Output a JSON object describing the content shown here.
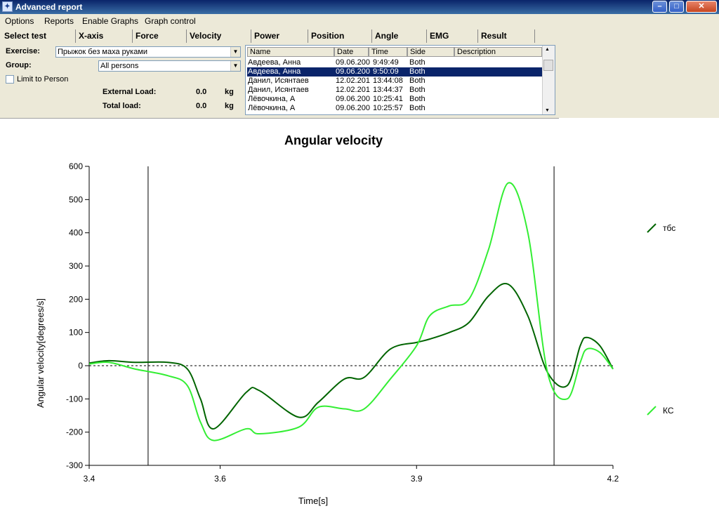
{
  "window": {
    "title": "Advanced report"
  },
  "menu": [
    "Options",
    "Reports",
    "Enable Graphs",
    "Graph control"
  ],
  "tabs": [
    "Select test",
    "X-axis",
    "Force",
    "Velocity",
    "Power",
    "Position",
    "Angle",
    "EMG",
    "Result"
  ],
  "form": {
    "exercise_label": "Exercise:",
    "exercise_value": "Прыжок без маха руками",
    "group_label": "Group:",
    "group_value": "All persons",
    "limit_label": "Limit to Person",
    "external_load_label": "External Load:",
    "external_load_value": "0.0",
    "external_load_unit": "kg",
    "total_load_label": "Total load:",
    "total_load_value": "0.0",
    "total_load_unit": "kg"
  },
  "list": {
    "columns": [
      "Name",
      "Date",
      "Time",
      "Side",
      "Description"
    ],
    "rows": [
      {
        "name": "Авдеева, Анна",
        "date": "09.06.200",
        "time": "9:49:49",
        "side": "Both",
        "selected": false
      },
      {
        "name": "Авдеева, Анна",
        "date": "09.06.200",
        "time": "9:50:09",
        "side": "Both",
        "selected": true
      },
      {
        "name": "Данил, Исянтаев",
        "date": "12.02.201",
        "time": "13:44:08",
        "side": "Both",
        "selected": false
      },
      {
        "name": "Данил, Исянтаев",
        "date": "12.02.201",
        "time": "13:44:37",
        "side": "Both",
        "selected": false
      },
      {
        "name": "Лёвочкина, А",
        "date": "09.06.200",
        "time": "10:25:41",
        "side": "Both",
        "selected": false
      },
      {
        "name": "Лёвочкина, А",
        "date": "09.06.200",
        "time": "10:25:57",
        "side": "Both",
        "selected": false
      }
    ]
  },
  "chart_data": {
    "type": "line",
    "title": "Angular velocity",
    "xlabel": "Time[s]",
    "ylabel": "Angular velocity[degrees/s]",
    "xlim": [
      3.4,
      4.2
    ],
    "ylim": [
      -300,
      600
    ],
    "xticks": [
      3.4,
      3.6,
      3.9,
      4.2
    ],
    "yticks": [
      600,
      500,
      400,
      300,
      200,
      100,
      0,
      -100,
      -200,
      -300
    ],
    "vlines": [
      3.49,
      4.11
    ],
    "zero_line": true,
    "legend_placement": "right",
    "series": [
      {
        "name": "тбс",
        "color": "#006400",
        "x": [
          3.4,
          3.43,
          3.47,
          3.52,
          3.55,
          3.57,
          3.59,
          3.64,
          3.66,
          3.72,
          3.75,
          3.79,
          3.82,
          3.86,
          3.9,
          3.92,
          3.95,
          3.98,
          4.01,
          4.04,
          4.07,
          4.1,
          4.13,
          4.15,
          4.16,
          4.18,
          4.2
        ],
        "y": [
          8,
          15,
          10,
          10,
          -10,
          -100,
          -190,
          -80,
          -75,
          -155,
          -110,
          -40,
          -35,
          50,
          70,
          80,
          100,
          130,
          210,
          245,
          150,
          -20,
          -60,
          60,
          85,
          60,
          -10
        ]
      },
      {
        "name": "КС",
        "color": "#33ee33",
        "x": [
          3.4,
          3.43,
          3.47,
          3.52,
          3.55,
          3.57,
          3.59,
          3.64,
          3.66,
          3.72,
          3.75,
          3.79,
          3.82,
          3.86,
          3.9,
          3.92,
          3.95,
          3.98,
          4.01,
          4.04,
          4.07,
          4.1,
          4.13,
          4.15,
          4.16,
          4.18,
          4.2
        ],
        "y": [
          5,
          10,
          -10,
          -30,
          -60,
          -170,
          -225,
          -190,
          -205,
          -185,
          -125,
          -130,
          -130,
          -40,
          60,
          150,
          180,
          200,
          350,
          550,
          400,
          -20,
          -100,
          10,
          50,
          40,
          -10
        ]
      }
    ]
  }
}
